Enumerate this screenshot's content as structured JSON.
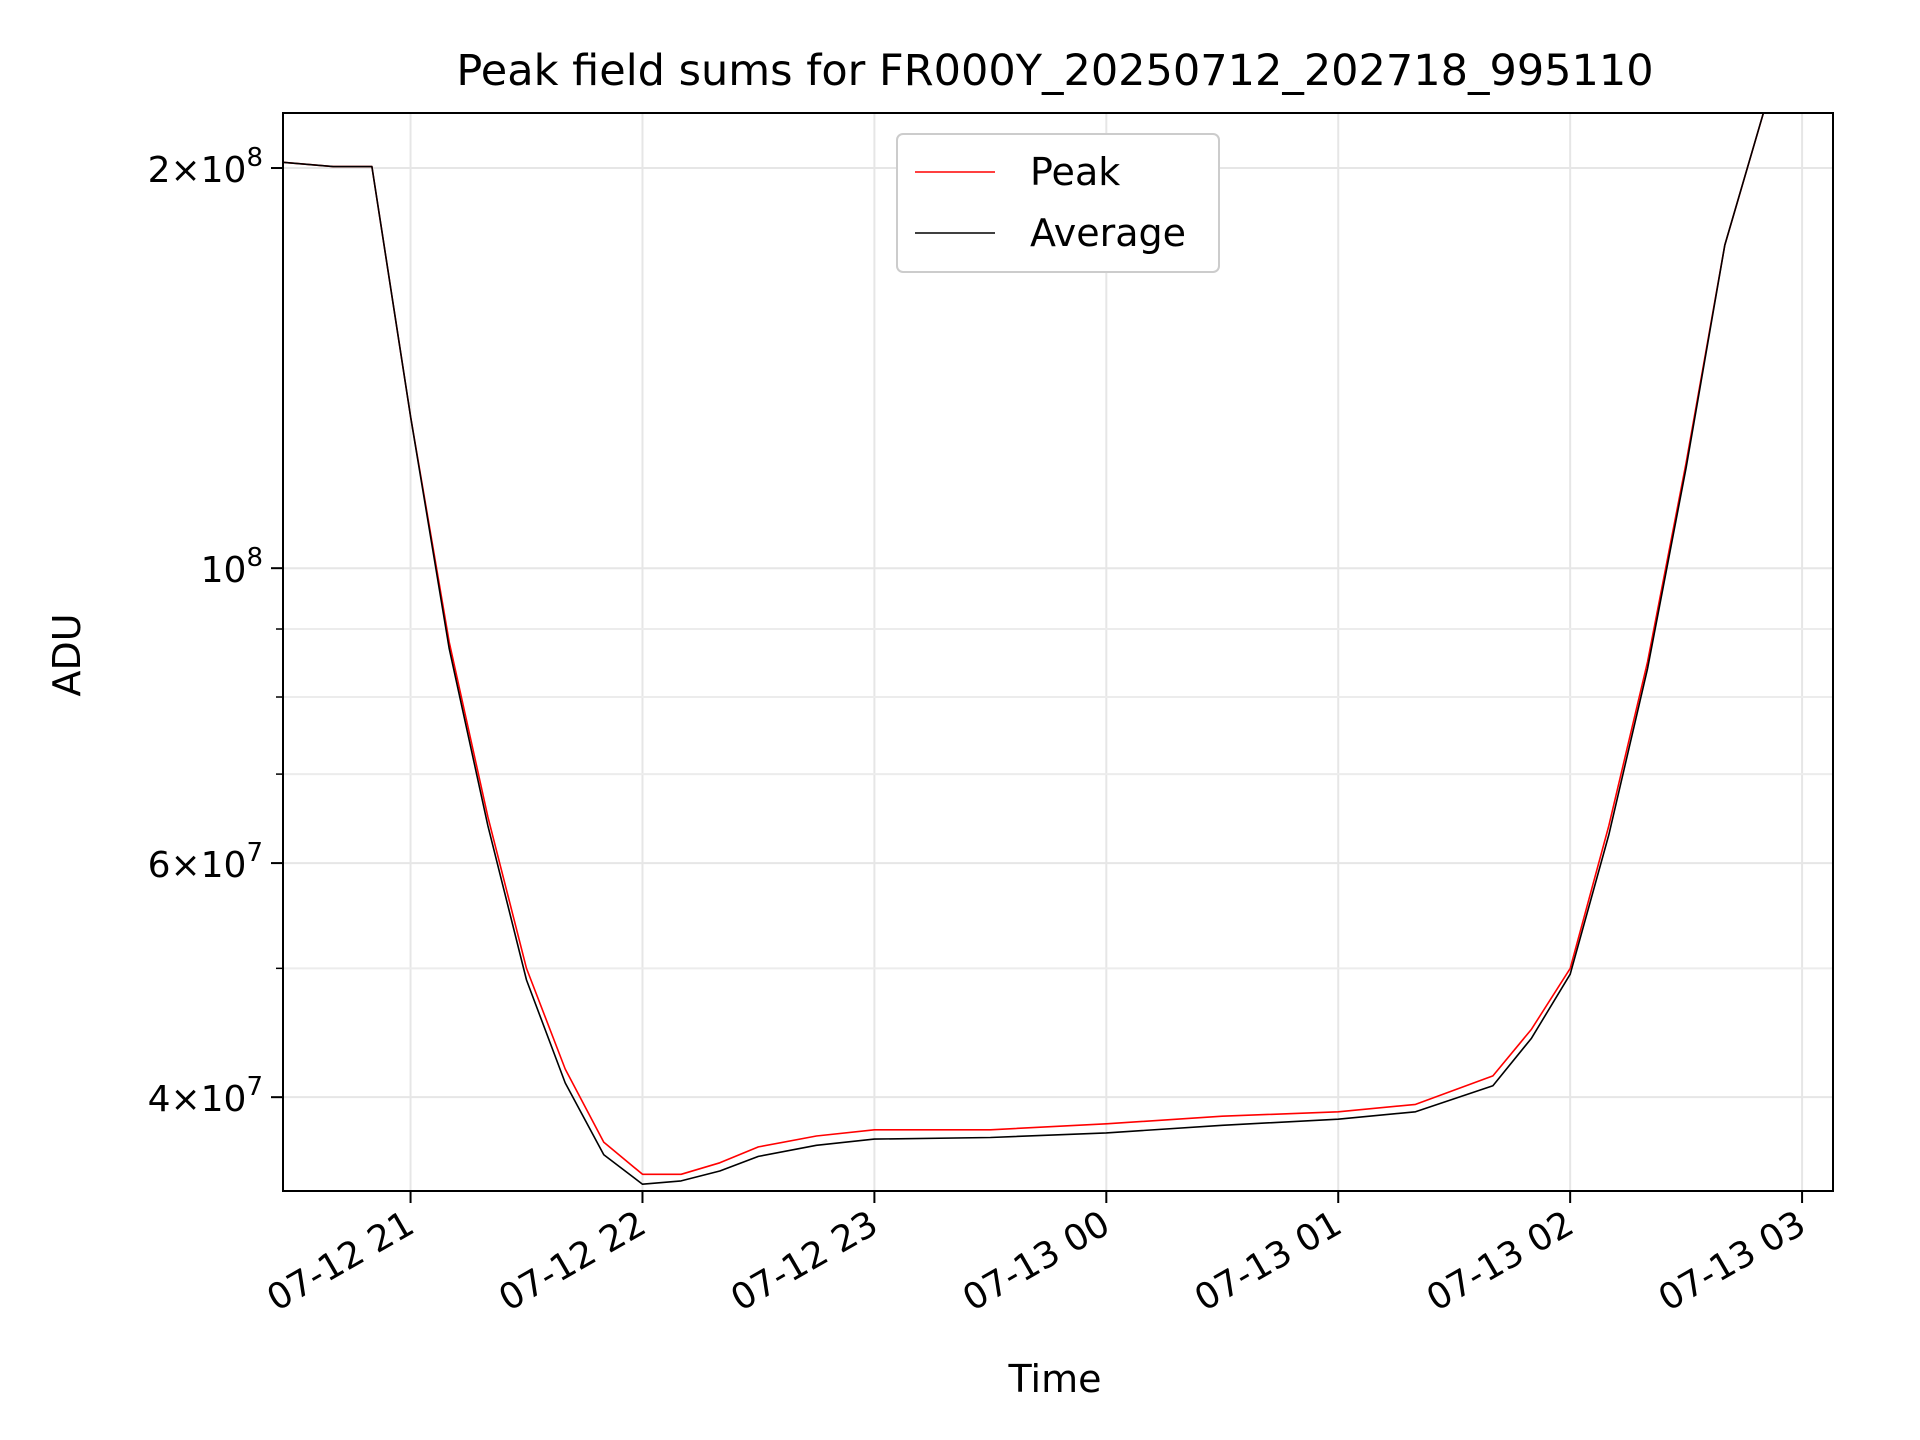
{
  "chart_data": {
    "type": "line",
    "title": "Peak field sums for FR000Y_20250712_202718_995110",
    "xlabel": "Time",
    "ylabel": "ADU",
    "yscale": "log",
    "ylim": [
      34000000,
      220000000
    ],
    "xlim": [
      "2025-07-12 20:27",
      "2025-07-13 03:08"
    ],
    "grid": true,
    "legend_position": "top-center",
    "x_ticks": [
      "07-12 21",
      "07-12 22",
      "07-12 23",
      "07-13 00",
      "07-13 01",
      "07-13 02",
      "07-13 03"
    ],
    "y_ticks": [
      {
        "value": 40000000,
        "mantissa": "4",
        "exponent": "7"
      },
      {
        "value": 60000000,
        "mantissa": "6",
        "exponent": "7"
      },
      {
        "value": 100000000,
        "mantissa": "",
        "exponent": "8"
      },
      {
        "value": 200000000,
        "mantissa": "2",
        "exponent": "8"
      }
    ],
    "series": [
      {
        "name": "Peak",
        "color": "#ff0000",
        "points": [
          [
            "2025-07-12 20:27",
            202000000
          ],
          [
            "2025-07-12 20:40",
            200500000
          ],
          [
            "2025-07-12 20:50",
            200500000
          ],
          [
            "2025-07-12 21:00",
            130000000
          ],
          [
            "2025-07-12 21:10",
            88000000
          ],
          [
            "2025-07-12 21:20",
            65000000
          ],
          [
            "2025-07-12 21:30",
            50000000
          ],
          [
            "2025-07-12 21:40",
            42000000
          ],
          [
            "2025-07-12 21:50",
            37000000
          ],
          [
            "2025-07-12 22:00",
            35000000
          ],
          [
            "2025-07-12 22:10",
            35000000
          ],
          [
            "2025-07-12 22:20",
            35700000
          ],
          [
            "2025-07-12 22:30",
            36700000
          ],
          [
            "2025-07-12 22:45",
            37400000
          ],
          [
            "2025-07-12 23:00",
            37800000
          ],
          [
            "2025-07-12 23:30",
            37800000
          ],
          [
            "2025-07-13 00:00",
            38200000
          ],
          [
            "2025-07-13 00:30",
            38700000
          ],
          [
            "2025-07-13 01:00",
            39000000
          ],
          [
            "2025-07-13 01:20",
            39500000
          ],
          [
            "2025-07-13 01:40",
            41500000
          ],
          [
            "2025-07-13 01:50",
            45000000
          ],
          [
            "2025-07-13 02:00",
            50000000
          ],
          [
            "2025-07-13 02:10",
            64000000
          ],
          [
            "2025-07-13 02:20",
            85000000
          ],
          [
            "2025-07-13 02:30",
            120000000
          ],
          [
            "2025-07-13 02:40",
            175000000
          ],
          [
            "2025-07-13 02:50",
            220000000
          ]
        ]
      },
      {
        "name": "Average",
        "color": "#000000",
        "points": [
          [
            "2025-07-12 20:27",
            202000000
          ],
          [
            "2025-07-12 20:40",
            200500000
          ],
          [
            "2025-07-12 20:50",
            200500000
          ],
          [
            "2025-07-12 21:00",
            130000000
          ],
          [
            "2025-07-12 21:10",
            87000000
          ],
          [
            "2025-07-12 21:20",
            64000000
          ],
          [
            "2025-07-12 21:30",
            49000000
          ],
          [
            "2025-07-12 21:40",
            41000000
          ],
          [
            "2025-07-12 21:50",
            36200000
          ],
          [
            "2025-07-12 22:00",
            34400000
          ],
          [
            "2025-07-12 22:10",
            34600000
          ],
          [
            "2025-07-12 22:20",
            35200000
          ],
          [
            "2025-07-12 22:30",
            36100000
          ],
          [
            "2025-07-12 22:45",
            36800000
          ],
          [
            "2025-07-12 23:00",
            37200000
          ],
          [
            "2025-07-12 23:30",
            37300000
          ],
          [
            "2025-07-13 00:00",
            37600000
          ],
          [
            "2025-07-13 00:30",
            38100000
          ],
          [
            "2025-07-13 01:00",
            38500000
          ],
          [
            "2025-07-13 01:20",
            39000000
          ],
          [
            "2025-07-13 01:40",
            40800000
          ],
          [
            "2025-07-13 01:50",
            44300000
          ],
          [
            "2025-07-13 02:00",
            49500000
          ],
          [
            "2025-07-13 02:10",
            63000000
          ],
          [
            "2025-07-13 02:20",
            84000000
          ],
          [
            "2025-07-13 02:30",
            119000000
          ],
          [
            "2025-07-13 02:40",
            175000000
          ],
          [
            "2025-07-13 02:50",
            220000000
          ]
        ]
      }
    ]
  }
}
